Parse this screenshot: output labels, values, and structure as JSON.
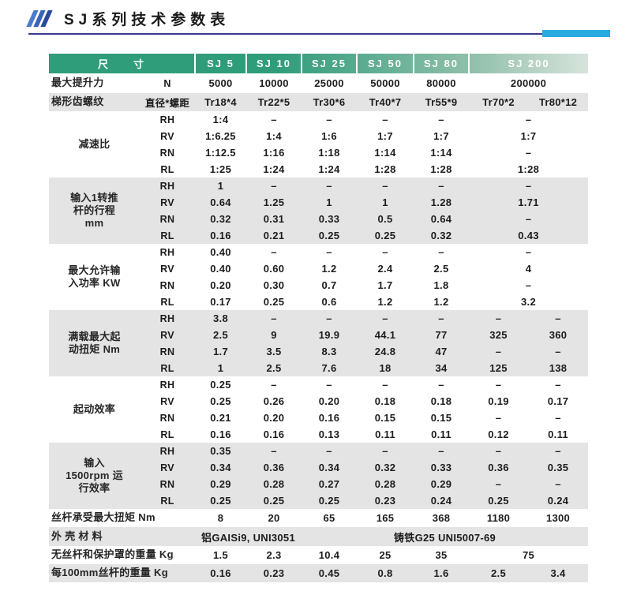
{
  "page": {
    "title": "SJ系列技术参数表",
    "icon": "triple-slash-icon"
  },
  "theme": {
    "header_green": "#2f9c7a",
    "header_green_mid": "#8fbfaa",
    "header_green_fade": "#d7e3dc",
    "band_gray": "#e4e4e4",
    "accent_cyan": "#29abe2",
    "rule_navy": "#3c3c8f",
    "slash_blue_1": "#4a7cc9",
    "slash_blue_2": "#3a64b5",
    "slash_blue_3": "#2a4a9e"
  },
  "table": {
    "columns": [
      {
        "key": "size",
        "label": "尺　　寸",
        "span": 2
      },
      {
        "key": "sj5",
        "label": "SJ 5"
      },
      {
        "key": "sj10",
        "label": "SJ 10"
      },
      {
        "key": "sj25",
        "label": "SJ 25"
      },
      {
        "key": "sj50",
        "label": "SJ 50"
      },
      {
        "key": "sj80",
        "label": "SJ 80"
      },
      {
        "key": "sj200",
        "label": "SJ 200",
        "span": 2
      }
    ],
    "sections": [
      {
        "name": "max-lift-force",
        "label": "最大提升力",
        "sub": "N",
        "rows": [
          [
            "5000",
            "10000",
            "25000",
            "50000",
            "80000",
            "200000"
          ]
        ]
      },
      {
        "name": "trapezoidal-thread",
        "label": "梯形齿螺纹",
        "sub": "直径*螺距",
        "rows": [
          [
            "Tr18*4",
            "Tr22*5",
            "Tr30*6",
            "Tr40*7",
            "Tr55*9",
            "Tr70*2",
            "Tr80*12"
          ]
        ]
      },
      {
        "name": "reduction-ratio",
        "label": "减速比",
        "subs": [
          "RH",
          "RV",
          "RN",
          "RL"
        ],
        "rows": [
          [
            "1:4",
            "–",
            "–",
            "–",
            "–",
            "–"
          ],
          [
            "1:6.25",
            "1:4",
            "1:6",
            "1:7",
            "1:7",
            "1:7"
          ],
          [
            "1:12.5",
            "1:16",
            "1:18",
            "1:14",
            "1:14",
            "–"
          ],
          [
            "1:25",
            "1:24",
            "1:24",
            "1:28",
            "1:28",
            "1:28"
          ]
        ]
      },
      {
        "name": "stroke-per-input-rev",
        "label": "输入1转推\n杆的行程\nmm",
        "subs": [
          "RH",
          "RV",
          "RN",
          "RL"
        ],
        "rows": [
          [
            "1",
            "–",
            "–",
            "–",
            "–",
            "–"
          ],
          [
            "0.64",
            "1.25",
            "1",
            "1",
            "1.28",
            "1.71"
          ],
          [
            "0.32",
            "0.31",
            "0.33",
            "0.5",
            "0.64",
            "–"
          ],
          [
            "0.16",
            "0.21",
            "0.25",
            "0.25",
            "0.32",
            "0.43"
          ]
        ]
      },
      {
        "name": "max-allowed-input-power",
        "label": "最大允许输\n入功率 KW",
        "subs": [
          "RH",
          "RV",
          "RN",
          "RL"
        ],
        "rows": [
          [
            "0.40",
            "–",
            "–",
            "–",
            "–",
            "–"
          ],
          [
            "0.40",
            "0.60",
            "1.2",
            "2.4",
            "2.5",
            "4"
          ],
          [
            "0.20",
            "0.30",
            "0.7",
            "1.7",
            "1.8",
            "–"
          ],
          [
            "0.17",
            "0.25",
            "0.6",
            "1.2",
            "1.2",
            "3.2"
          ]
        ]
      },
      {
        "name": "full-load-max-starting-torque",
        "label": "满载最大起\n动扭矩 Nm",
        "subs": [
          "RH",
          "RV",
          "RN",
          "RL"
        ],
        "rows": [
          [
            "3.8",
            "–",
            "–",
            "–",
            "–",
            "–",
            "–"
          ],
          [
            "2.5",
            "9",
            "19.9",
            "44.1",
            "77",
            "325",
            "360"
          ],
          [
            "1.7",
            "3.5",
            "8.3",
            "24.8",
            "47",
            "–",
            "–"
          ],
          [
            "1",
            "2.5",
            "7.6",
            "18",
            "34",
            "125",
            "138"
          ]
        ]
      },
      {
        "name": "starting-efficiency",
        "label": "起动效率",
        "subs": [
          "RH",
          "RV",
          "RN",
          "RL"
        ],
        "rows": [
          [
            "0.25",
            "–",
            "–",
            "–",
            "–",
            "–",
            "–"
          ],
          [
            "0.25",
            "0.26",
            "0.20",
            "0.18",
            "0.18",
            "0.19",
            "0.17"
          ],
          [
            "0.21",
            "0.20",
            "0.16",
            "0.15",
            "0.15",
            "–",
            "–"
          ],
          [
            "0.16",
            "0.16",
            "0.13",
            "0.11",
            "0.11",
            "0.12",
            "0.11"
          ]
        ]
      },
      {
        "name": "running-efficiency-1500rpm",
        "label": "输入\n1500rpm 运\n行效率",
        "subs": [
          "RH",
          "RV",
          "RN",
          "RL"
        ],
        "rows": [
          [
            "0.35",
            "–",
            "–",
            "–",
            "–",
            "–",
            "–"
          ],
          [
            "0.34",
            "0.36",
            "0.34",
            "0.32",
            "0.33",
            "0.36",
            "0.35"
          ],
          [
            "0.29",
            "0.28",
            "0.27",
            "0.28",
            "0.29",
            "–",
            "–"
          ],
          [
            "0.25",
            "0.25",
            "0.25",
            "0.23",
            "0.24",
            "0.25",
            "0.24"
          ]
        ]
      },
      {
        "name": "screw-max-torque",
        "label": "丝杆承受最大扭矩 Nm",
        "label_span": 2,
        "rows": [
          [
            "8",
            "20",
            "65",
            "165",
            "368",
            "1180",
            "1300"
          ]
        ]
      },
      {
        "name": "housing-material",
        "label": "外 壳 材 料",
        "label_span": 2,
        "merged": [
          {
            "text": "铝GAISi9, UNI3051",
            "span": 2
          },
          {
            "text": "铸铁G25 UNI5007-69",
            "span": 5
          }
        ]
      },
      {
        "name": "weight-without-screw-and-cover",
        "label": "无丝杆和保护罩的重量 Kg",
        "label_span": 2,
        "rows": [
          [
            "1.5",
            "2.3",
            "10.4",
            "25",
            "35",
            "75"
          ]
        ]
      },
      {
        "name": "screw-weight-per-100mm",
        "label": "每100mm丝杆的重量 Kg",
        "label_span": 2,
        "rows": [
          [
            "0.16",
            "0.23",
            "0.45",
            "0.8",
            "1.6",
            "2.5",
            "3.4"
          ]
        ]
      }
    ]
  }
}
